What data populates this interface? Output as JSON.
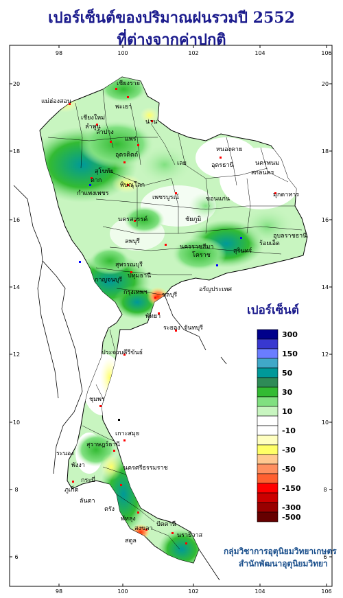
{
  "title": {
    "line1": "เปอร์เซ็นต์ของปริมาณฝนรวมปี  2552",
    "line2": "ที่ต่างจากค่าปกติ"
  },
  "axes": {
    "lon_ticks": [
      "98",
      "100",
      "102",
      "104",
      "106"
    ],
    "lat_ticks": [
      "20",
      "18",
      "16",
      "14",
      "12",
      "10",
      "8",
      "6"
    ]
  },
  "legend": {
    "title": "เปอร์เซ็นต์",
    "classes": [
      {
        "label": "300",
        "color": "#00008b"
      },
      {
        "label": "",
        "color": "#3838d0"
      },
      {
        "label": "150",
        "color": "#6a7dff"
      },
      {
        "label": "",
        "color": "#40a8c8"
      },
      {
        "label": "50",
        "color": "#009999"
      },
      {
        "label": "",
        "color": "#2e8b57"
      },
      {
        "label": "30",
        "color": "#33bb33"
      },
      {
        "label": "",
        "color": "#80e080"
      },
      {
        "label": "10",
        "color": "#c8f5c0"
      },
      {
        "label": "",
        "color": "#ffffff"
      },
      {
        "label": "-10",
        "color": "#ffffff"
      },
      {
        "label": "",
        "color": "#ffffc0"
      },
      {
        "label": "-30",
        "color": "#ffff66"
      },
      {
        "label": "",
        "color": "#ffc890"
      },
      {
        "label": "-50",
        "color": "#ff9060"
      },
      {
        "label": "",
        "color": "#ff6030"
      },
      {
        "label": "-150",
        "color": "#ff0000"
      },
      {
        "label": "",
        "color": "#cc0000"
      },
      {
        "label": "-300",
        "color": "#990000"
      },
      {
        "label": "-500",
        "color": "#660000"
      }
    ]
  },
  "credits": {
    "line1": "กลุ่มวิชาการอุตุนิยมวิทยาเกษตร",
    "line2": "สำนักพัฒนาอุตุนิยมวิทยา"
  },
  "places": [
    {
      "name": "เชียงราย"
    },
    {
      "name": "แม่ฮ่องสอน"
    },
    {
      "name": "เชียงใหม่"
    },
    {
      "name": "พะเยา"
    },
    {
      "name": "น่าน"
    },
    {
      "name": "ลำพูน"
    },
    {
      "name": "ลำปาง"
    },
    {
      "name": "แพร่"
    },
    {
      "name": "อุตรดิตถ์"
    },
    {
      "name": "ตาก"
    },
    {
      "name": "สุโขทัย"
    },
    {
      "name": "พิษณุโลก"
    },
    {
      "name": "เลย"
    },
    {
      "name": "หนองคาย"
    },
    {
      "name": "อุดรธานี"
    },
    {
      "name": "สกลนคร"
    },
    {
      "name": "นครพนม"
    },
    {
      "name": "มุกดาหาร"
    },
    {
      "name": "ขอนแก่น"
    },
    {
      "name": "กำแพงเพชร"
    },
    {
      "name": "เพชรบูรณ์"
    },
    {
      "name": "นครสวรรค์"
    },
    {
      "name": "ชัยภูมิ"
    },
    {
      "name": "ร้อยเอ็ด"
    },
    {
      "name": "อุบลราชธานี"
    },
    {
      "name": "ลพบุรี"
    },
    {
      "name": "นครราชสีมา"
    },
    {
      "name": "สุรินทร์"
    },
    {
      "name": "โคราช"
    },
    {
      "name": "สุพรรณบุรี"
    },
    {
      "name": "ปทุมธานี"
    },
    {
      "name": "กาญจนบุรี"
    },
    {
      "name": "กรุงเทพฯ"
    },
    {
      "name": "ชลบุรี"
    },
    {
      "name": "อรัญประเทศ"
    },
    {
      "name": "พัทยา"
    },
    {
      "name": "ระยอง"
    },
    {
      "name": "จันทบุรี"
    },
    {
      "name": "ประจวบคีรีขันธ์"
    },
    {
      "name": "ชุมพร"
    },
    {
      "name": "ระนอง"
    },
    {
      "name": "สุราษฎร์ธานี"
    },
    {
      "name": "พังงา"
    },
    {
      "name": "ภูเก็ต"
    },
    {
      "name": "กระบี่"
    },
    {
      "name": "นครศรีธรรมราช"
    },
    {
      "name": "ตรัง"
    },
    {
      "name": "พัทลุง"
    },
    {
      "name": "สงขลา"
    },
    {
      "name": "สตูล"
    },
    {
      "name": "ปัตตานี"
    },
    {
      "name": "นราธิวาส"
    },
    {
      "name": "เกาะสมุย"
    },
    {
      "name": "ลันตา"
    }
  ]
}
